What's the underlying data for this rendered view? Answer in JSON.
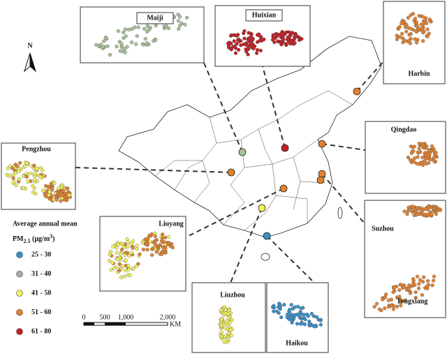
{
  "north": "N",
  "legend": {
    "title": "Average annual mean",
    "unit": [
      "PM",
      "2.5",
      " (μg/m",
      "3",
      ")"
    ],
    "items": [
      {
        "label": "25 - 30",
        "color": "#3b8fc9"
      },
      {
        "label": "31 - 40",
        "color": "#a9aca6"
      },
      {
        "label": "41 - 50",
        "color": "#f2f25e"
      },
      {
        "label": "51 - 60",
        "color": "#e2822f"
      },
      {
        "label": "61 - 80",
        "color": "#c21f24"
      }
    ]
  },
  "scale_bar": {
    "labels": [
      "0",
      "500",
      "1,000",
      "2,000"
    ],
    "unit": "KM"
  },
  "sites": [
    {
      "name": "Maiji",
      "colors": [
        "#a9c29a"
      ]
    },
    {
      "name": "Huixian",
      "colors": [
        "#c21f24"
      ]
    },
    {
      "name": "Harbin",
      "colors": [
        "#e2822f"
      ]
    },
    {
      "name": "Qingdao",
      "colors": [
        "#e2822f"
      ]
    },
    {
      "name": "Pengzhou",
      "colors": [
        "#f2f25e",
        "#e2822f"
      ]
    },
    {
      "name": "Suzhou",
      "colors": [
        "#e2822f"
      ]
    },
    {
      "name": "Tongxiang",
      "colors": [
        "#e2822f"
      ]
    },
    {
      "name": "Liuyang",
      "colors": [
        "#f2f25e",
        "#e2822f"
      ]
    },
    {
      "name": "Liuzhou",
      "colors": [
        "#f2f25e"
      ]
    },
    {
      "name": "Haikou",
      "colors": [
        "#3b8fc9"
      ]
    }
  ]
}
